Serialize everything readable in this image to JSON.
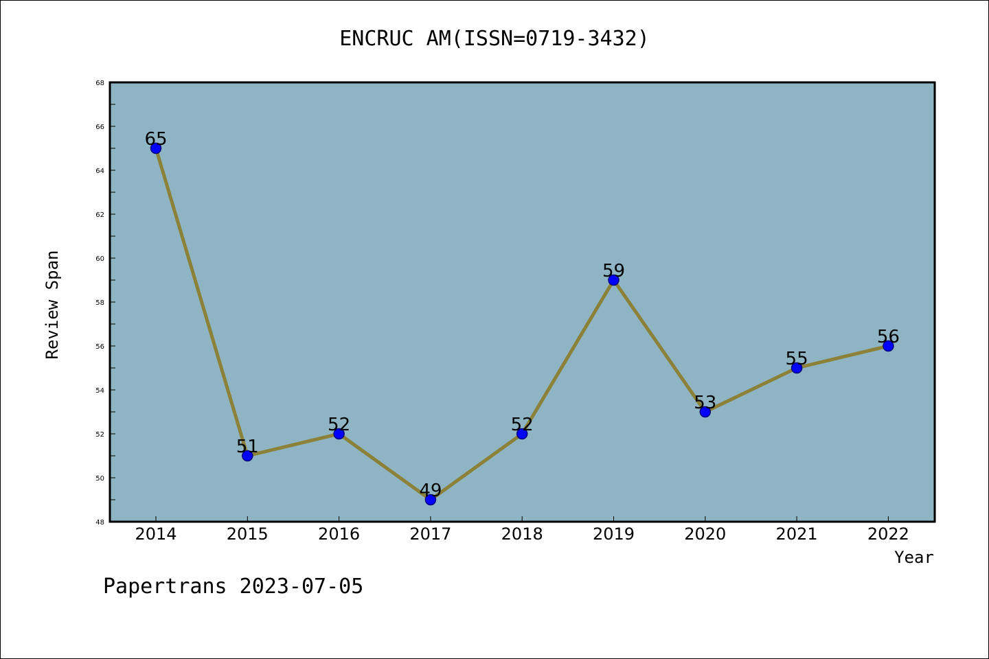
{
  "chart_data": {
    "type": "line",
    "title": "ENCRUC AM(ISSN=0719-3432)",
    "xlabel": "Year",
    "ylabel": "Review Span",
    "x": [
      "2014",
      "2015",
      "2016",
      "2017",
      "2018",
      "2019",
      "2020",
      "2021",
      "2022"
    ],
    "values": [
      65,
      51,
      52,
      49,
      52,
      59,
      53,
      55,
      56
    ],
    "ylim": [
      48,
      68
    ],
    "yticks": [
      48,
      50,
      52,
      54,
      56,
      58,
      60,
      62,
      64,
      66,
      68
    ],
    "grid": false,
    "data_labels": true
  },
  "colors": {
    "plot_background": "#8fb5c4",
    "line": "#8b8138",
    "marker": "#0000ff",
    "marker_edge": "#000080"
  },
  "footer": "Papertrans 2023-07-05"
}
